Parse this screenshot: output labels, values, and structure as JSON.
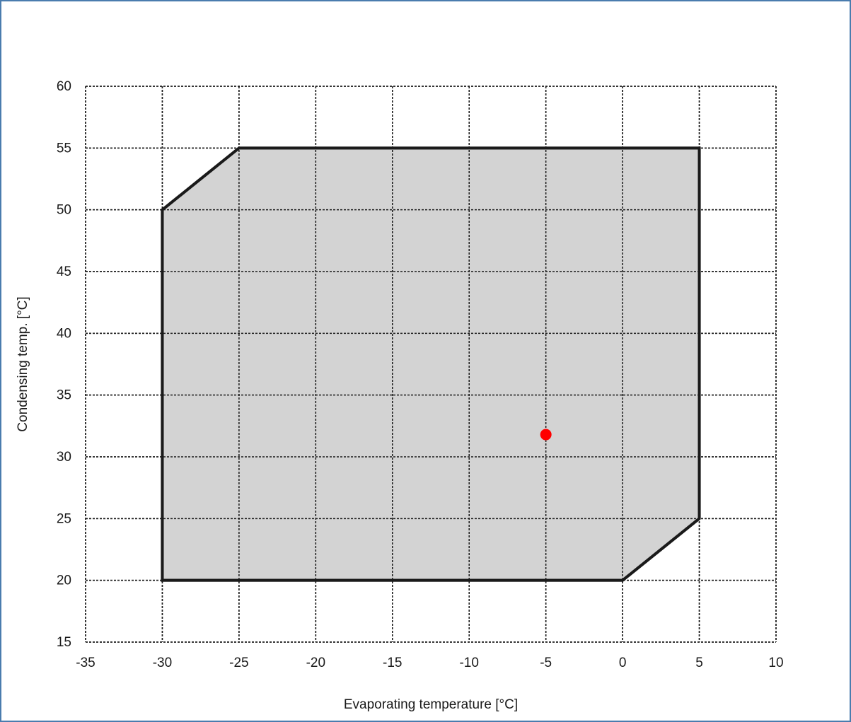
{
  "chart_data": {
    "type": "area",
    "title": "",
    "xlabel": "Evaporating temperature [°C]",
    "ylabel": "Condensing temp. [°C]",
    "xlim": [
      -35,
      10
    ],
    "ylim": [
      15,
      60
    ],
    "x_ticks": [
      -35,
      -30,
      -25,
      -20,
      -15,
      -10,
      -5,
      0,
      5,
      10
    ],
    "y_ticks": [
      15,
      20,
      25,
      30,
      35,
      40,
      45,
      50,
      55,
      60
    ],
    "x_tick_labels": [
      "-35",
      "-30",
      "-25",
      "-20",
      "-15",
      "-10",
      "-5",
      "0",
      "5",
      "10"
    ],
    "y_tick_labels": [
      "15",
      "20",
      "25",
      "30",
      "35",
      "40",
      "45",
      "50",
      "55",
      "60"
    ],
    "grid": true,
    "grid_style": "dashed",
    "envelope": {
      "points": [
        [
          -30,
          20
        ],
        [
          0,
          20
        ],
        [
          5,
          25
        ],
        [
          5,
          55
        ],
        [
          -25,
          55
        ],
        [
          -30,
          50
        ]
      ],
      "fill": "#d3d3d3",
      "stroke": "#1a1a1a"
    },
    "operating_point": {
      "x": -5,
      "y": 31.8,
      "color": "#ff0000"
    }
  }
}
